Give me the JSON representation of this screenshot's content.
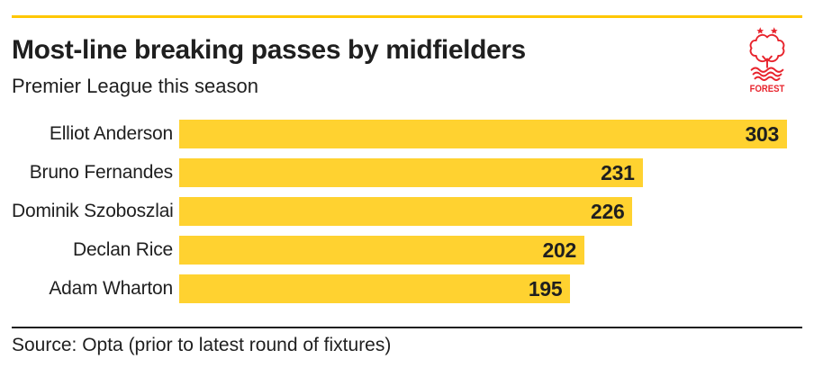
{
  "header": {
    "title": "Most-line breaking passes by midfielders",
    "subtitle": "Premier League this season"
  },
  "logo": {
    "club": "Nottingham Forest",
    "wordmark": "FOREST",
    "color": "#E8242D"
  },
  "chart_data": {
    "type": "bar",
    "orientation": "horizontal",
    "title": "Most-line breaking passes by midfielders",
    "subtitle": "Premier League this season",
    "categories": [
      "Elliot Anderson",
      "Bruno Fernandes",
      "Dominik Szoboszlai",
      "Declan Rice",
      "Adam Wharton"
    ],
    "values": [
      303,
      231,
      226,
      202,
      195
    ],
    "xlim": [
      0,
      303
    ],
    "bar_color": "#FFD230",
    "value_label_position": "inside-end",
    "grid": false,
    "legend": false
  },
  "footer": {
    "source": "Source: Opta (prior to latest round of fixtures)"
  },
  "colors": {
    "accent_rule": "#FFC700",
    "bar": "#FFD230",
    "text": "#1F1F1F",
    "divider": "#1F1F1F",
    "logo_red": "#E8242D",
    "background": "#FFFFFF"
  }
}
